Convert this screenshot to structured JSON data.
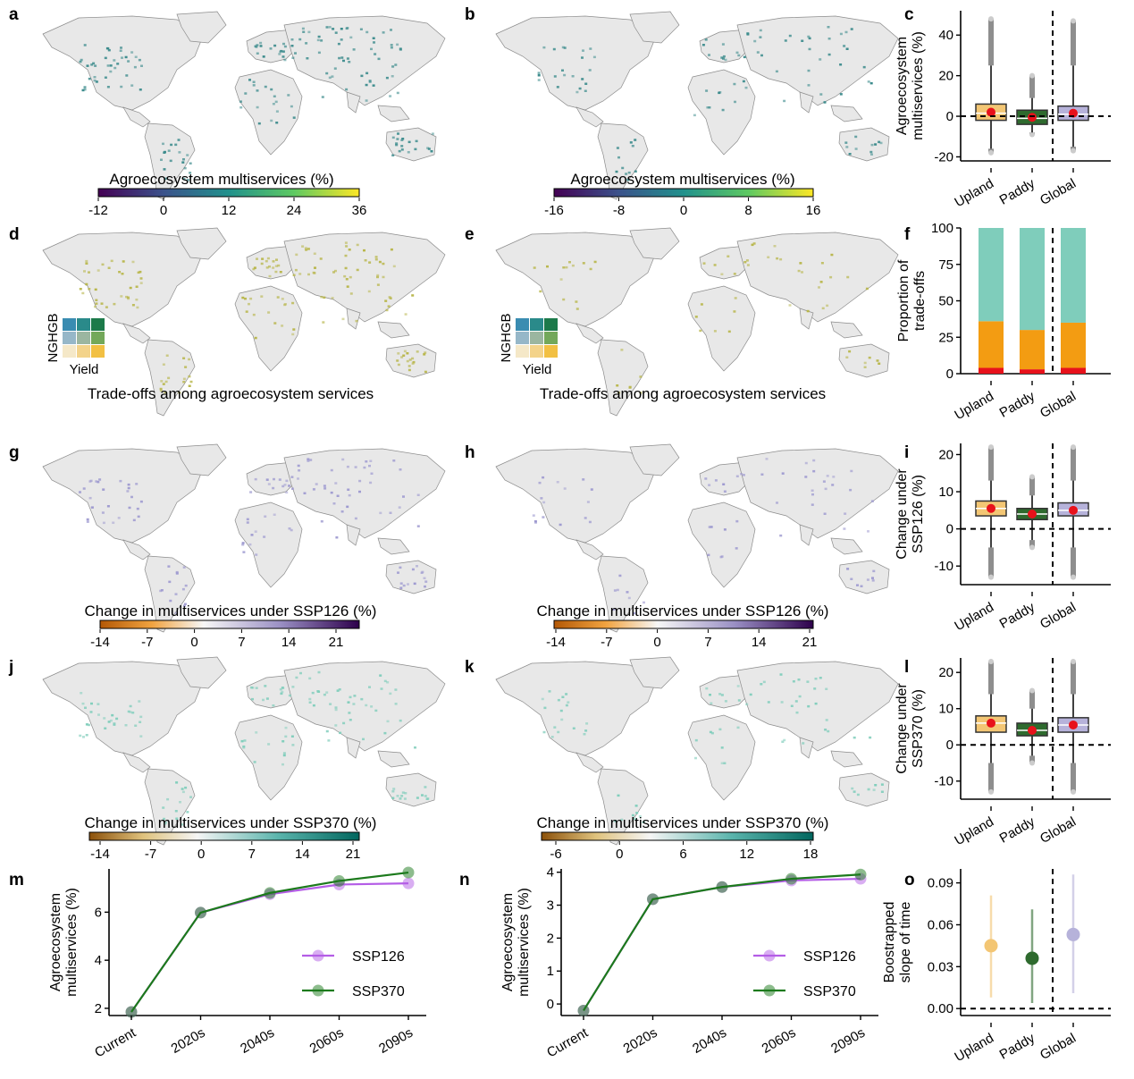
{
  "panel_letters": {
    "a": "a",
    "b": "b",
    "c": "c",
    "d": "d",
    "e": "e",
    "f": "f",
    "g": "g",
    "h": "h",
    "i": "i",
    "j": "j",
    "k": "k",
    "l": "l",
    "m": "m",
    "n": "n",
    "o": "o"
  },
  "maps": {
    "a": {
      "colorbar_title": "Agroecosystem multiservices (%)",
      "ticks": [
        "-12",
        "0",
        "12",
        "24",
        "36"
      ],
      "palette": "viridis",
      "fill": "#3b8b8c",
      "intensity": 1.0
    },
    "b": {
      "colorbar_title": "Agroecosystem multiservices (%)",
      "ticks": [
        "-16",
        "-8",
        "0",
        "8",
        "16"
      ],
      "palette": "viridis",
      "fill": "#3b8b8c",
      "intensity": 0.55
    },
    "d": {
      "title": "Trade-offs among agroecosystem services",
      "legend_y": "NGHGB",
      "legend_x": "Yield",
      "fill": "#b8b64a",
      "intensity": 0.9
    },
    "e": {
      "title": "Trade-offs among agroecosystem services",
      "legend_y": "NGHGB",
      "legend_x": "Yield",
      "fill": "#b8b64a",
      "intensity": 0.35
    },
    "g": {
      "colorbar_title": "Change in multiservices under SSP126 (%)",
      "ticks": [
        "-14",
        "-7",
        "0",
        "7",
        "14",
        "21"
      ],
      "palette": "puor",
      "fill": "#9e9ad0",
      "intensity": 0.7
    },
    "h": {
      "colorbar_title": "Change in multiservices under SSP126 (%)",
      "ticks": [
        "-14",
        "-7",
        "0",
        "7",
        "14",
        "21"
      ],
      "palette": "puor",
      "fill": "#9e9ad0",
      "intensity": 0.4
    },
    "j": {
      "colorbar_title": "Change in multiservices under SSP370 (%)",
      "ticks": [
        "-14",
        "-7",
        "0",
        "7",
        "14",
        "21"
      ],
      "palette": "brbg",
      "fill": "#7fcdbb",
      "intensity": 0.75
    },
    "k": {
      "colorbar_title": "Change in multiservices under SSP370 (%)",
      "ticks": [
        "-6",
        "0",
        "6",
        "12",
        "18"
      ],
      "palette": "brbg",
      "fill": "#7fcdbb",
      "intensity": 0.45
    }
  },
  "colors": {
    "upland": "#f3c674",
    "paddy": "#2e6a2e",
    "global": "#b6b2da",
    "mean_dot": "#e8121b",
    "ssp126": "#b45de6",
    "ssp370": "#1c7a1c",
    "stack_top": "#7fcdbb",
    "stack_mid": "#f39c12",
    "stack_low": "#e8121b",
    "land": "#e8e8e8",
    "border": "#8c8c8c"
  },
  "chart_data": [
    {
      "panel": "c",
      "type": "box",
      "categories": [
        "Upland",
        "Paddy",
        "Global"
      ],
      "ylabel": "Agroecosystem multiservices (%)",
      "ylim": [
        -22,
        52
      ],
      "yticks": [
        -20,
        0,
        20,
        40
      ],
      "boxes": [
        {
          "q1": -2,
          "median": 1.5,
          "q3": 6,
          "mean": 2,
          "whisker_low": -16,
          "whisker_high": 25,
          "out_high": 48,
          "out_low": -18
        },
        {
          "q1": -4,
          "median": -1,
          "q3": 3,
          "mean": -0.5,
          "whisker_low": -8,
          "whisker_high": 9,
          "out_high": 20,
          "out_low": -9
        },
        {
          "q1": -2,
          "median": 1,
          "q3": 5,
          "mean": 1.5,
          "whisker_low": -15,
          "whisker_high": 25,
          "out_high": 47,
          "out_low": -17
        }
      ],
      "reference_line": 0
    },
    {
      "panel": "f",
      "type": "bar",
      "stacked": true,
      "categories": [
        "Upland",
        "Paddy",
        "Global"
      ],
      "ylabel": "Proportion of trade-offs",
      "ylim": [
        0,
        100
      ],
      "yticks": [
        0,
        25,
        50,
        75,
        100
      ],
      "series": [
        {
          "values": [
            4,
            3,
            4
          ]
        },
        {
          "values": [
            32,
            27,
            31
          ]
        },
        {
          "values": [
            64,
            70,
            65
          ]
        }
      ]
    },
    {
      "panel": "i",
      "type": "box",
      "categories": [
        "Upland",
        "Paddy",
        "Global"
      ],
      "ylabel": "Change under SSP126 (%)",
      "ylim": [
        -15,
        23
      ],
      "yticks": [
        -10,
        0,
        10,
        20
      ],
      "boxes": [
        {
          "q1": 3.5,
          "median": 5.5,
          "q3": 7.5,
          "mean": 5.5,
          "whisker_low": -5,
          "whisker_high": 13,
          "out_high": 22,
          "out_low": -13
        },
        {
          "q1": 2.5,
          "median": 4,
          "q3": 5.5,
          "mean": 4,
          "whisker_low": -3,
          "whisker_high": 9,
          "out_high": 14,
          "out_low": -5
        },
        {
          "q1": 3.5,
          "median": 5,
          "q3": 7,
          "mean": 5,
          "whisker_low": -5,
          "whisker_high": 13,
          "out_high": 22,
          "out_low": -13
        }
      ],
      "reference_line": 0
    },
    {
      "panel": "l",
      "type": "box",
      "categories": [
        "Upland",
        "Paddy",
        "Global"
      ],
      "ylabel": "Change under SSP370 (%)",
      "ylim": [
        -15,
        24
      ],
      "yticks": [
        -10,
        0,
        10,
        20
      ],
      "boxes": [
        {
          "q1": 3.5,
          "median": 6,
          "q3": 8,
          "mean": 6,
          "whisker_low": -5,
          "whisker_high": 14,
          "out_high": 23,
          "out_low": -13
        },
        {
          "q1": 2.5,
          "median": 4,
          "q3": 6,
          "mean": 4,
          "whisker_low": -3,
          "whisker_high": 10,
          "out_high": 15,
          "out_low": -5
        },
        {
          "q1": 3.5,
          "median": 5.5,
          "q3": 7.5,
          "mean": 5.5,
          "whisker_low": -5,
          "whisker_high": 14,
          "out_high": 23,
          "out_low": -13
        }
      ],
      "reference_line": 0
    },
    {
      "panel": "m",
      "type": "line",
      "categories": [
        "Current",
        "2020s",
        "2040s",
        "2060s",
        "2090s"
      ],
      "ylabel": "Agroecosystem multiservices (%)",
      "ylim": [
        1.7,
        7.8
      ],
      "yticks": [
        2,
        4,
        6
      ],
      "series": [
        {
          "name": "SSP126",
          "values": [
            1.85,
            5.98,
            6.75,
            7.15,
            7.2
          ]
        },
        {
          "name": "SSP370",
          "values": [
            1.85,
            5.98,
            6.8,
            7.3,
            7.65
          ]
        }
      ]
    },
    {
      "panel": "n",
      "type": "line",
      "categories": [
        "Current",
        "2020s",
        "2040s",
        "2060s",
        "2090s"
      ],
      "ylabel": "Agroecosystem multiservices (%)",
      "ylim": [
        -0.35,
        4.1
      ],
      "yticks": [
        0,
        1,
        2,
        3,
        4
      ],
      "series": [
        {
          "name": "SSP126",
          "values": [
            -0.2,
            3.18,
            3.55,
            3.75,
            3.8
          ]
        },
        {
          "name": "SSP370",
          "values": [
            -0.2,
            3.18,
            3.55,
            3.8,
            3.93
          ]
        }
      ]
    },
    {
      "panel": "o",
      "type": "scatter",
      "categories": [
        "Upland",
        "Paddy",
        "Global"
      ],
      "ylabel": "Boostrapped slope of time",
      "ylim": [
        -0.005,
        0.1
      ],
      "yticks": [
        "0.00",
        "0.03",
        "0.06",
        "0.09"
      ],
      "points": [
        {
          "value": 0.045,
          "low": 0.008,
          "high": 0.081
        },
        {
          "value": 0.036,
          "low": 0.004,
          "high": 0.071
        },
        {
          "value": 0.053,
          "low": 0.011,
          "high": 0.096
        }
      ],
      "reference_line": 0
    }
  ]
}
